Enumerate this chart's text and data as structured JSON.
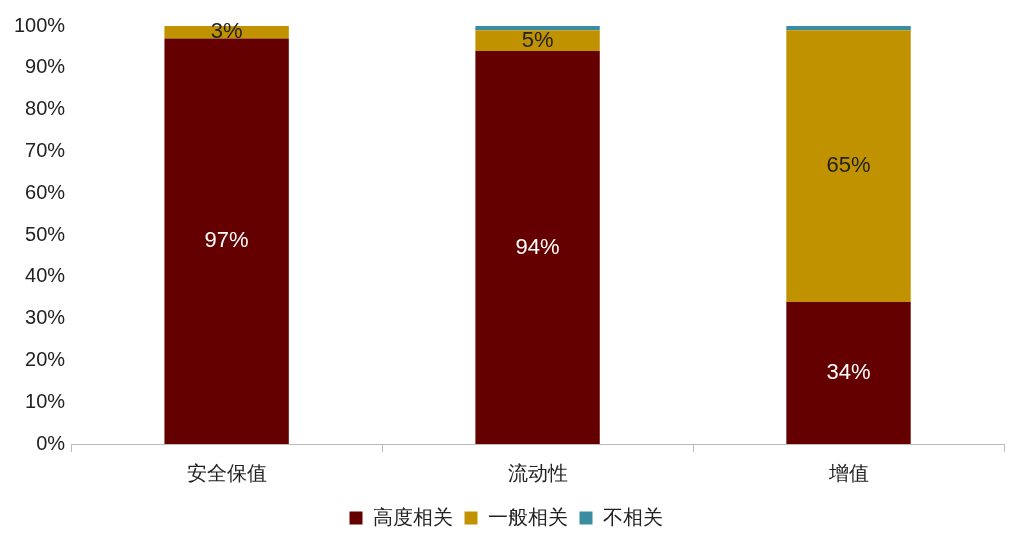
{
  "chart_data": {
    "type": "bar",
    "stacked": true,
    "categories": [
      "安全保值",
      "流动性",
      "增值"
    ],
    "series": [
      {
        "name": "高度相关",
        "color": "#650000",
        "values": [
          97,
          94,
          34
        ],
        "value_labels": [
          "97%",
          "94%",
          "34%"
        ]
      },
      {
        "name": "一般相关",
        "color": "#c09200",
        "values": [
          3,
          5,
          65
        ],
        "value_labels": [
          "3%",
          "5%",
          "65%"
        ]
      },
      {
        "name": "不相关",
        "color": "#3a8ca0",
        "values": [
          0,
          1,
          1
        ],
        "value_labels": [
          null,
          null,
          null
        ]
      }
    ],
    "ylim": [
      0,
      100
    ],
    "yticks": [
      {
        "value": 0,
        "label": "0%"
      },
      {
        "value": 10,
        "label": "10%"
      },
      {
        "value": 20,
        "label": "20%"
      },
      {
        "value": 30,
        "label": "30%"
      },
      {
        "value": 40,
        "label": "40%"
      },
      {
        "value": 50,
        "label": "50%"
      },
      {
        "value": 60,
        "label": "60%"
      },
      {
        "value": 70,
        "label": "70%"
      },
      {
        "value": 80,
        "label": "80%"
      },
      {
        "value": 90,
        "label": "90%"
      },
      {
        "value": 100,
        "label": "100%"
      }
    ],
    "grid": false,
    "legend": "bottom"
  }
}
